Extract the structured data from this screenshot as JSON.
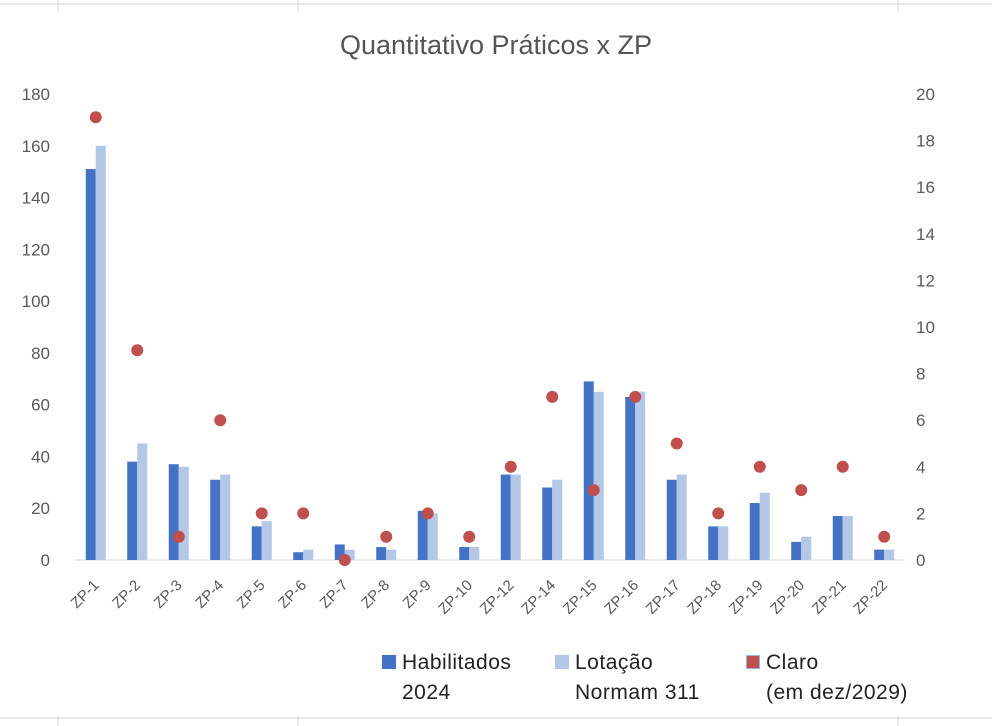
{
  "chart_data": {
    "type": "bar",
    "title": "Quantitativo Práticos x ZP",
    "categories": [
      "ZP-1",
      "ZP-2",
      "ZP-3",
      "ZP-4",
      "ZP-5",
      "ZP-6",
      "ZP-7",
      "ZP-8",
      "ZP-9",
      "ZP-10",
      "ZP-12",
      "ZP-14",
      "ZP-15",
      "ZP-16",
      "ZP-17",
      "ZP-18",
      "ZP-19",
      "ZP-20",
      "ZP-21",
      "ZP-22"
    ],
    "series": [
      {
        "name": "Habilitados 2024",
        "kind": "bar",
        "axis": "left",
        "color": "#4472c4",
        "values": [
          151,
          38,
          37,
          31,
          13,
          3,
          6,
          5,
          19,
          5,
          33,
          28,
          69,
          63,
          31,
          13,
          22,
          7,
          17,
          4
        ]
      },
      {
        "name": "Lotação Normam 311",
        "kind": "bar",
        "axis": "left",
        "color": "#b4c7e7",
        "values": [
          160,
          45,
          36,
          33,
          15,
          4,
          4,
          4,
          18,
          5,
          33,
          31,
          65,
          65,
          33,
          13,
          26,
          9,
          17,
          4
        ]
      },
      {
        "name": "Claro (em dez/2029)",
        "kind": "scatter",
        "axis": "right",
        "color": "#c0504d",
        "values": [
          19,
          9,
          1,
          6,
          2,
          2,
          0,
          1,
          2,
          1,
          4,
          7,
          3,
          7,
          5,
          2,
          4,
          3,
          4,
          1
        ]
      }
    ],
    "ylim": [
      0,
      180
    ],
    "y_ticks": [
      "0",
      "20",
      "40",
      "60",
      "80",
      "100",
      "120",
      "140",
      "160",
      "180"
    ],
    "y2lim": [
      0,
      20
    ],
    "y2_ticks": [
      "0",
      "2",
      "4",
      "6",
      "8",
      "10",
      "12",
      "14",
      "16",
      "18",
      "20"
    ],
    "grid": false,
    "legend_position": "bottom-right"
  },
  "legend": {
    "items": [
      {
        "line1": "Habilitados",
        "line2": "2024",
        "color": "#4472c4"
      },
      {
        "line1": "Lotação",
        "line2": "Normam 311",
        "color": "#b4c7e7"
      },
      {
        "line1": "Claro",
        "line2": "(em dez/2029)",
        "color": "#c0504d"
      }
    ]
  }
}
